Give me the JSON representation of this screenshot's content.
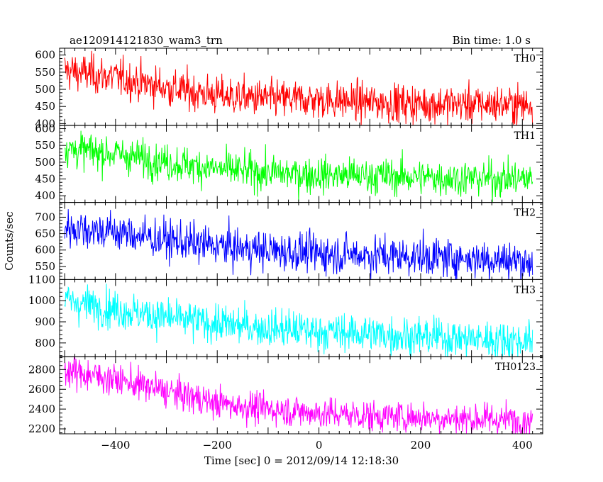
{
  "header": {
    "title": "ae120914121830_wam3_trn",
    "bin_time": "Bin time: 1.0 s"
  },
  "xaxis": {
    "label": "Time [sec] 0 = 2012/09/14 12:18:30",
    "ticks": [
      "−400",
      "−200",
      "0",
      "200",
      "400"
    ]
  },
  "yaxis": {
    "label": "Counts/sec"
  },
  "chart_data": {
    "type": "line",
    "xlabel": "Time [sec] 0 = 2012/09/14 12:18:30",
    "ylabel": "Counts/sec",
    "xlim": [
      -510,
      440
    ],
    "x_ticks": [
      -400,
      -200,
      0,
      200,
      400
    ],
    "x_range": [
      -500,
      420
    ],
    "panels": [
      {
        "name": "TH0",
        "color": "#ff0000",
        "ylim": [
          395,
          620
        ],
        "y_ticks": [
          400,
          450,
          500,
          550,
          600
        ],
        "trend": [
          [
            -500,
            555
          ],
          [
            -400,
            535
          ],
          [
            -300,
            505
          ],
          [
            -200,
            482
          ],
          [
            -100,
            472
          ],
          [
            0,
            470
          ],
          [
            100,
            462
          ],
          [
            200,
            458
          ],
          [
            300,
            457
          ],
          [
            420,
            455
          ]
        ],
        "noise": 28
      },
      {
        "name": "TH1",
        "color": "#00ff00",
        "ylim": [
          380,
          610
        ],
        "y_ticks": [
          400,
          450,
          500,
          550,
          600
        ],
        "trend": [
          [
            -500,
            540
          ],
          [
            -400,
            525
          ],
          [
            -300,
            500
          ],
          [
            -200,
            480
          ],
          [
            -100,
            468
          ],
          [
            0,
            462
          ],
          [
            100,
            460
          ],
          [
            200,
            455
          ],
          [
            300,
            452
          ],
          [
            420,
            450
          ]
        ],
        "noise": 27
      },
      {
        "name": "TH2",
        "color": "#0000ff",
        "ylim": [
          510,
          745
        ],
        "y_ticks": [
          550,
          600,
          650,
          700
        ],
        "trend": [
          [
            -500,
            670
          ],
          [
            -400,
            655
          ],
          [
            -300,
            630
          ],
          [
            -200,
            612
          ],
          [
            -100,
            598
          ],
          [
            0,
            590
          ],
          [
            100,
            585
          ],
          [
            200,
            580
          ],
          [
            300,
            575
          ],
          [
            420,
            565
          ]
        ],
        "noise": 30
      },
      {
        "name": "TH3",
        "color": "#00ffff",
        "ylim": [
          735,
          1100
        ],
        "y_ticks": [
          800,
          900,
          1000,
          1100
        ],
        "trend": [
          [
            -500,
            1000
          ],
          [
            -400,
            960
          ],
          [
            -300,
            920
          ],
          [
            -200,
            890
          ],
          [
            -100,
            870
          ],
          [
            0,
            855
          ],
          [
            100,
            845
          ],
          [
            200,
            830
          ],
          [
            300,
            820
          ],
          [
            420,
            810
          ]
        ],
        "noise": 45
      },
      {
        "name": "TH0123",
        "color": "#ff00ff",
        "ylim": [
          2150,
          2930
        ],
        "y_ticks": [
          2200,
          2400,
          2600,
          2800
        ],
        "trend": [
          [
            -500,
            2790
          ],
          [
            -400,
            2700
          ],
          [
            -300,
            2580
          ],
          [
            -200,
            2460
          ],
          [
            -100,
            2400
          ],
          [
            0,
            2360
          ],
          [
            100,
            2330
          ],
          [
            200,
            2320
          ],
          [
            300,
            2300
          ],
          [
            420,
            2290
          ]
        ],
        "noise": 80
      }
    ]
  }
}
